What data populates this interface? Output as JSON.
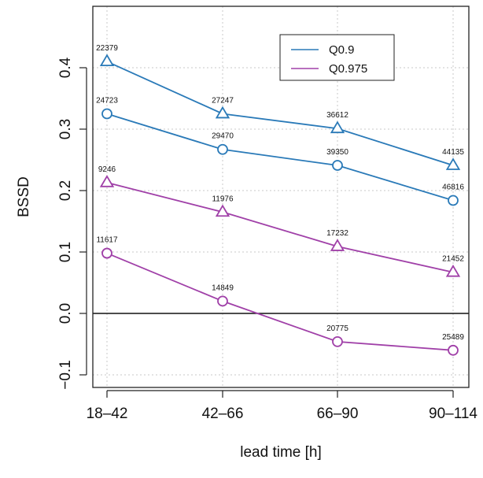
{
  "chart_data": {
    "type": "line",
    "xlabel": "lead time [h]",
    "ylabel": "BSSD",
    "categories": [
      "18–42",
      "42–66",
      "66–90",
      "90–114"
    ],
    "ylim": [
      -0.13,
      0.46
    ],
    "yticks": [
      -0.1,
      0.0,
      0.1,
      0.2,
      0.3,
      0.4
    ],
    "ytick_labels": [
      "−0.1",
      "0.0",
      "0.1",
      "0.2",
      "0.3",
      "0.4"
    ],
    "grid": true,
    "reference_line": 0.0,
    "legend": {
      "position": "top-right",
      "entries": [
        {
          "label": "Q0.9",
          "color": "#2a7ab8"
        },
        {
          "label": "Q0.975",
          "color": "#a040a8"
        }
      ]
    },
    "series": [
      {
        "group": "Q0.9",
        "marker": "triangle",
        "color": "#2a7ab8",
        "values": [
          0.41,
          0.325,
          0.301,
          0.241
        ],
        "point_labels": [
          "22379",
          "27247",
          "36612",
          "44135"
        ]
      },
      {
        "group": "Q0.9",
        "marker": "circle",
        "color": "#2a7ab8",
        "values": [
          0.325,
          0.267,
          0.241,
          0.184
        ],
        "point_labels": [
          "24723",
          "29470",
          "39350",
          "46816"
        ]
      },
      {
        "group": "Q0.975",
        "marker": "triangle",
        "color": "#a040a8",
        "values": [
          0.213,
          0.165,
          0.109,
          0.067
        ],
        "point_labels": [
          "9246",
          "11976",
          "17232",
          "21452"
        ]
      },
      {
        "group": "Q0.975",
        "marker": "circle",
        "color": "#a040a8",
        "values": [
          0.098,
          0.02,
          -0.046,
          -0.06
        ],
        "point_labels": [
          "11617",
          "14849",
          "20775",
          "25489"
        ]
      }
    ]
  }
}
